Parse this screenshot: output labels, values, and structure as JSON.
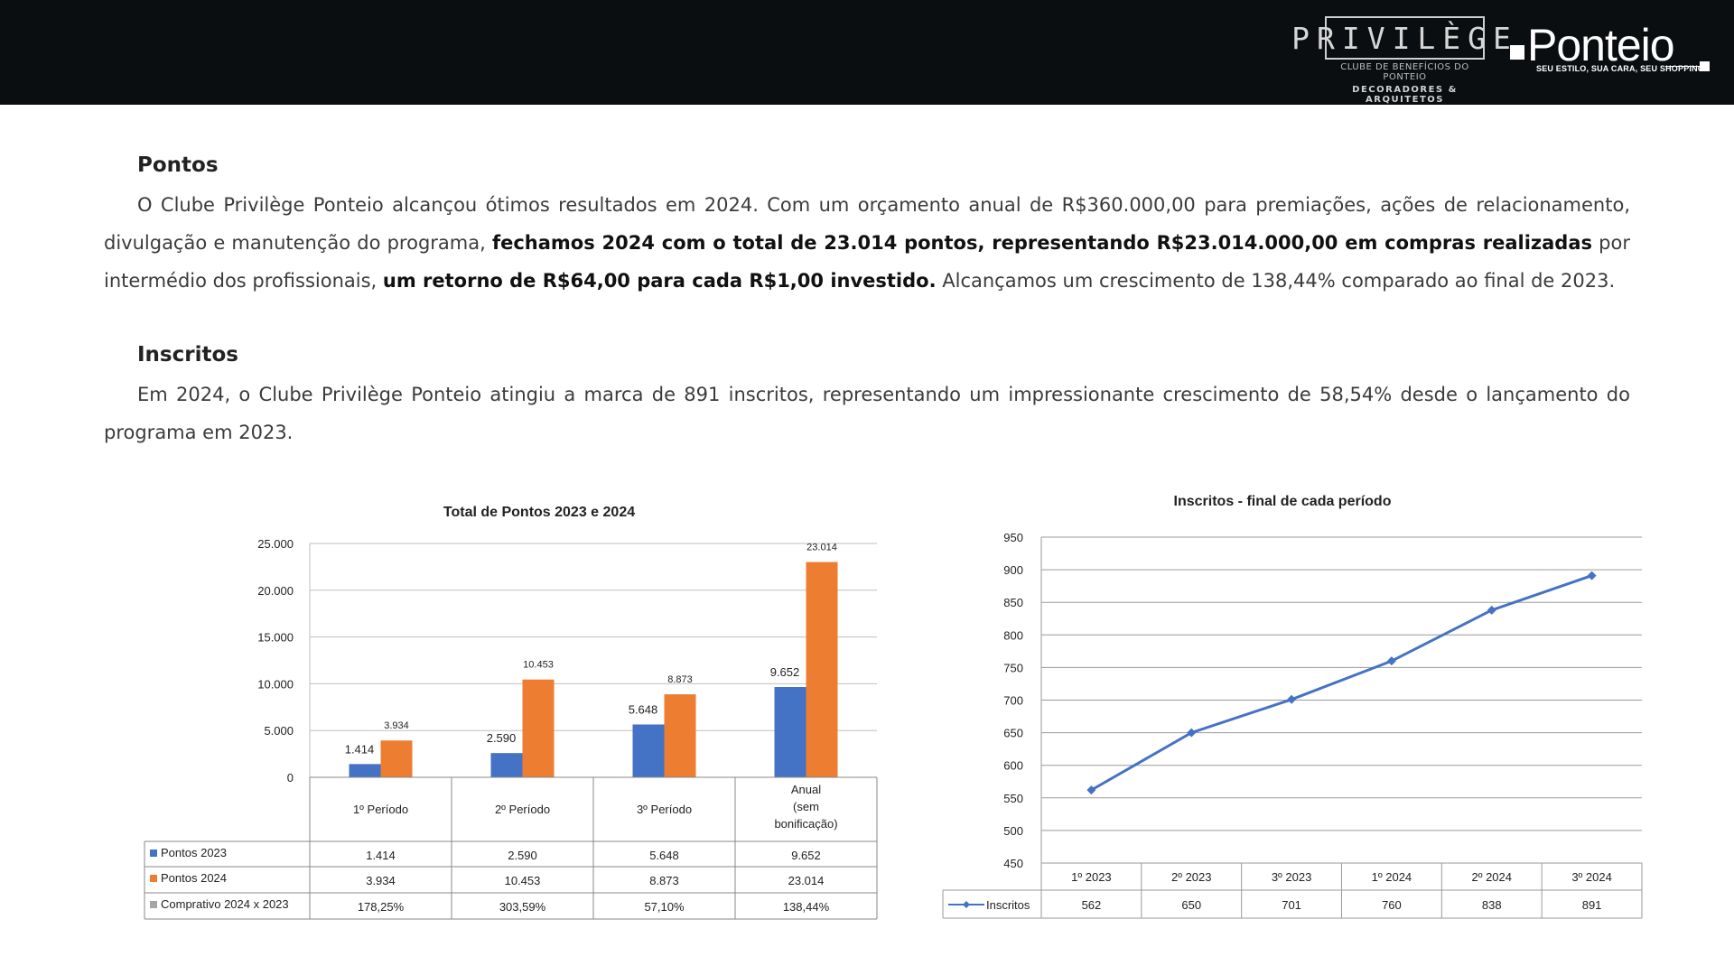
{
  "header": {
    "privilege_logo": {
      "word": "PRIVILÈGE",
      "sub1": "CLUBE DE BENEFÍCIOS DO PONTEIO",
      "sub2": "DECORADORES & ARQUITETOS"
    },
    "ponteio_logo": {
      "word": "Ponteio",
      "tagline": "SEU ESTILO, SUA CARA, SEU SHOPPING"
    },
    "background": "#0a0e10"
  },
  "sections": {
    "pontos": {
      "title": "Pontos",
      "p1": "O Clube Privilège Ponteio alcançou ótimos resultados em 2024. Com um orçamento anual de R$360.000,00 para premiações, ações de relacionamento, divulgação e manutenção do programa, ",
      "p1_bold": "fechamos 2024 com o total de 23.014 pontos, representando R$23.014.000,00 em compras realizadas",
      "p2": " por intermédio dos profissionais, ",
      "p2_bold": "um retorno de R$64,00 para cada R$1,00 investido.",
      "p3": " Alcançamos um crescimento de 138,44% comparado ao final de 2023."
    },
    "inscritos": {
      "title": "Inscritos",
      "text": "Em 2024, o Clube Privilège Ponteio atingiu a marca de 891 inscritos, representando um impressionante crescimento de 58,54% desde o lançamento do programa em 2023."
    }
  },
  "chart_data": [
    {
      "type": "bar",
      "title": "Total de Pontos 2023 e 2024",
      "categories": [
        "1º Período",
        "2º Período",
        "3º Período",
        "Anual (sem bonificação)"
      ],
      "series": [
        {
          "name": "Pontos 2023",
          "values": [
            1414,
            2590,
            5648,
            9652
          ],
          "labels": [
            "1.414",
            "2.590",
            "5.648",
            "9.652"
          ],
          "color": "#4472c4"
        },
        {
          "name": "Pontos 2024",
          "values": [
            3934,
            10453,
            8873,
            23014
          ],
          "labels": [
            "3.934",
            "10.453",
            "8.873",
            "23.014"
          ],
          "color": "#ed7d31"
        },
        {
          "name": "Comprativo 2024 x 2023",
          "labels": [
            "178,25%",
            "303,59%",
            "57,10%",
            "138,44%"
          ],
          "color": "#a5a5a5"
        }
      ],
      "ylim": [
        0,
        25000
      ],
      "yticks": [
        0,
        5000,
        10000,
        15000,
        20000,
        25000
      ],
      "ytick_labels": [
        "0",
        "5.000",
        "10.000",
        "15.000",
        "20.000",
        "25.000"
      ],
      "grid": true,
      "legend": "data-table"
    },
    {
      "type": "line",
      "title": "Inscritos - final de cada período",
      "categories": [
        "1º 2023",
        "2º 2023",
        "3º 2023",
        "1º 2024",
        "2º 2024",
        "3º 2024"
      ],
      "series": [
        {
          "name": "Inscritos",
          "values": [
            562,
            650,
            701,
            760,
            838,
            891
          ],
          "labels": [
            "562",
            "650",
            "701",
            "760",
            "838",
            "891"
          ],
          "color": "#4472c4"
        }
      ],
      "ylim": [
        450,
        950
      ],
      "yticks": [
        450,
        500,
        550,
        600,
        650,
        700,
        750,
        800,
        850,
        900,
        950
      ],
      "grid": true,
      "legend": "data-table"
    }
  ]
}
